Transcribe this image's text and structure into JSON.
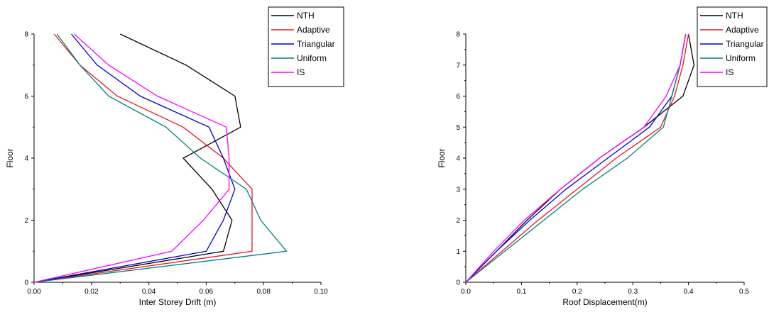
{
  "chart_data": [
    {
      "type": "line",
      "title": "",
      "xlabel": "Inter Storey Drift (m)",
      "ylabel": "Floor",
      "xlim": [
        0,
        0.1
      ],
      "ylim": [
        0,
        8
      ],
      "x_ticks": [
        "0.00",
        "0.02",
        "0.04",
        "0.06",
        "0.08",
        "0.10"
      ],
      "y_ticks": [
        "0",
        "2",
        "4",
        "6",
        "8"
      ],
      "legend": "top-right",
      "series": [
        {
          "name": "NTH",
          "color": "#000000",
          "points": [
            [
              0,
              0
            ],
            [
              0.066,
              1
            ],
            [
              0.069,
              2
            ],
            [
              0.062,
              3
            ],
            [
              0.052,
              4
            ],
            [
              0.072,
              5
            ],
            [
              0.07,
              6
            ],
            [
              0.053,
              7
            ],
            [
              0.03,
              8
            ]
          ]
        },
        {
          "name": "Adaptive",
          "color": "#e41a1c",
          "points": [
            [
              0,
              0
            ],
            [
              0.076,
              1
            ],
            [
              0.076,
              2
            ],
            [
              0.076,
              3
            ],
            [
              0.066,
              4
            ],
            [
              0.052,
              5
            ],
            [
              0.029,
              6
            ],
            [
              0.016,
              7
            ],
            [
              0.007,
              8
            ]
          ]
        },
        {
          "name": "Triangular",
          "color": "#0000cc",
          "points": [
            [
              0,
              0
            ],
            [
              0.06,
              1
            ],
            [
              0.066,
              2
            ],
            [
              0.07,
              3
            ],
            [
              0.066,
              4
            ],
            [
              0.061,
              5
            ],
            [
              0.037,
              6
            ],
            [
              0.022,
              7
            ],
            [
              0.013,
              8
            ]
          ]
        },
        {
          "name": "Uniform",
          "color": "#008080",
          "points": [
            [
              0,
              0
            ],
            [
              0.088,
              1
            ],
            [
              0.079,
              2
            ],
            [
              0.074,
              3
            ],
            [
              0.058,
              4
            ],
            [
              0.046,
              5
            ],
            [
              0.026,
              6
            ],
            [
              0.016,
              7
            ],
            [
              0.008,
              8
            ]
          ]
        },
        {
          "name": "IS",
          "color": "#ff00ff",
          "points": [
            [
              0,
              0
            ],
            [
              0.048,
              1
            ],
            [
              0.059,
              2
            ],
            [
              0.068,
              3
            ],
            [
              0.068,
              4
            ],
            [
              0.067,
              5
            ],
            [
              0.043,
              6
            ],
            [
              0.026,
              7
            ],
            [
              0.014,
              8
            ]
          ]
        }
      ]
    },
    {
      "type": "line",
      "title": "",
      "xlabel": "Roof Displacement(m)",
      "ylabel": "Floor",
      "xlim": [
        0,
        0.5
      ],
      "ylim": [
        0,
        8
      ],
      "x_ticks": [
        "0.0",
        "0.1",
        "0.2",
        "0.3",
        "0.4",
        "0.5"
      ],
      "y_ticks": [
        "0",
        "1",
        "2",
        "3",
        "4",
        "5",
        "6",
        "7",
        "8"
      ],
      "legend": "top-right",
      "series": [
        {
          "name": "NTH",
          "color": "#000000",
          "points": [
            [
              0,
              0
            ],
            [
              0.055,
              1
            ],
            [
              0.11,
              2
            ],
            [
              0.17,
              3
            ],
            [
              0.24,
              4
            ],
            [
              0.32,
              5
            ],
            [
              0.39,
              6
            ],
            [
              0.41,
              7
            ],
            [
              0.4,
              8
            ]
          ]
        },
        {
          "name": "Adaptive",
          "color": "#e41a1c",
          "points": [
            [
              0,
              0
            ],
            [
              0.065,
              1
            ],
            [
              0.13,
              2
            ],
            [
              0.2,
              3
            ],
            [
              0.27,
              4
            ],
            [
              0.35,
              5
            ],
            [
              0.375,
              6
            ],
            [
              0.39,
              7
            ],
            [
              0.4,
              8
            ]
          ]
        },
        {
          "name": "Triangular",
          "color": "#0000cc",
          "points": [
            [
              0,
              0
            ],
            [
              0.055,
              1
            ],
            [
              0.115,
              2
            ],
            [
              0.18,
              3
            ],
            [
              0.255,
              4
            ],
            [
              0.33,
              5
            ],
            [
              0.37,
              6
            ],
            [
              0.385,
              7
            ],
            [
              0.395,
              8
            ]
          ]
        },
        {
          "name": "Uniform",
          "color": "#008080",
          "points": [
            [
              0,
              0
            ],
            [
              0.07,
              1
            ],
            [
              0.14,
              2
            ],
            [
              0.21,
              3
            ],
            [
              0.29,
              4
            ],
            [
              0.355,
              5
            ],
            [
              0.37,
              6
            ],
            [
              0.385,
              7
            ],
            [
              0.395,
              8
            ]
          ]
        },
        {
          "name": "IS",
          "color": "#ff00ff",
          "points": [
            [
              0,
              0
            ],
            [
              0.05,
              1
            ],
            [
              0.105,
              2
            ],
            [
              0.17,
              3
            ],
            [
              0.24,
              4
            ],
            [
              0.32,
              5
            ],
            [
              0.36,
              6
            ],
            [
              0.385,
              7
            ],
            [
              0.395,
              8
            ]
          ]
        }
      ]
    }
  ]
}
